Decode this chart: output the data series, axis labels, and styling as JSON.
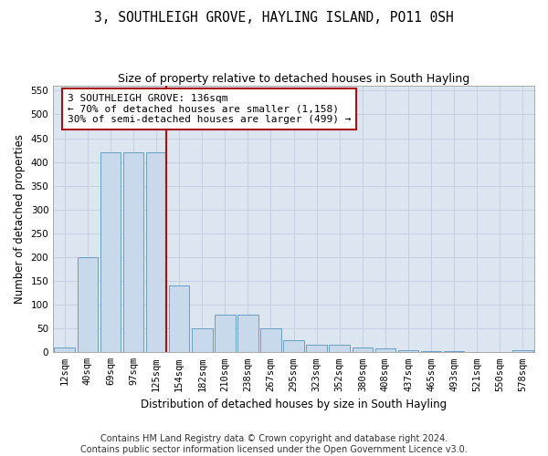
{
  "title": "3, SOUTHLEIGH GROVE, HAYLING ISLAND, PO11 0SH",
  "subtitle": "Size of property relative to detached houses in South Hayling",
  "xlabel": "Distribution of detached houses by size in South Hayling",
  "ylabel": "Number of detached properties",
  "footer_line1": "Contains HM Land Registry data © Crown copyright and database right 2024.",
  "footer_line2": "Contains public sector information licensed under the Open Government Licence v3.0.",
  "categories": [
    "12sqm",
    "40sqm",
    "69sqm",
    "97sqm",
    "125sqm",
    "154sqm",
    "182sqm",
    "210sqm",
    "238sqm",
    "267sqm",
    "295sqm",
    "323sqm",
    "352sqm",
    "380sqm",
    "408sqm",
    "437sqm",
    "465sqm",
    "493sqm",
    "521sqm",
    "550sqm",
    "578sqm"
  ],
  "bar_heights": [
    10,
    200,
    420,
    420,
    420,
    140,
    50,
    80,
    80,
    50,
    25,
    15,
    15,
    10,
    8,
    5,
    3,
    2,
    1,
    0,
    5
  ],
  "bar_color": "#c8d9eb",
  "bar_edge_color": "#6a9dc0",
  "grid_color": "#c5cfe0",
  "bg_color": "#dce6f0",
  "vline_color": "#aa1111",
  "annotation_text": "3 SOUTHLEIGH GROVE: 136sqm\n← 70% of detached houses are smaller (1,158)\n30% of semi-detached houses are larger (499) →",
  "annotation_box_color": "#ffffff",
  "annotation_box_edge": "#aa1111",
  "vline_x": 4.42,
  "ylim": [
    0,
    560
  ],
  "yticks": [
    0,
    50,
    100,
    150,
    200,
    250,
    300,
    350,
    400,
    450,
    500,
    550
  ],
  "title_fontsize": 10.5,
  "subtitle_fontsize": 9,
  "axis_label_fontsize": 8.5,
  "tick_fontsize": 7.5,
  "annotation_fontsize": 8,
  "footer_fontsize": 7
}
